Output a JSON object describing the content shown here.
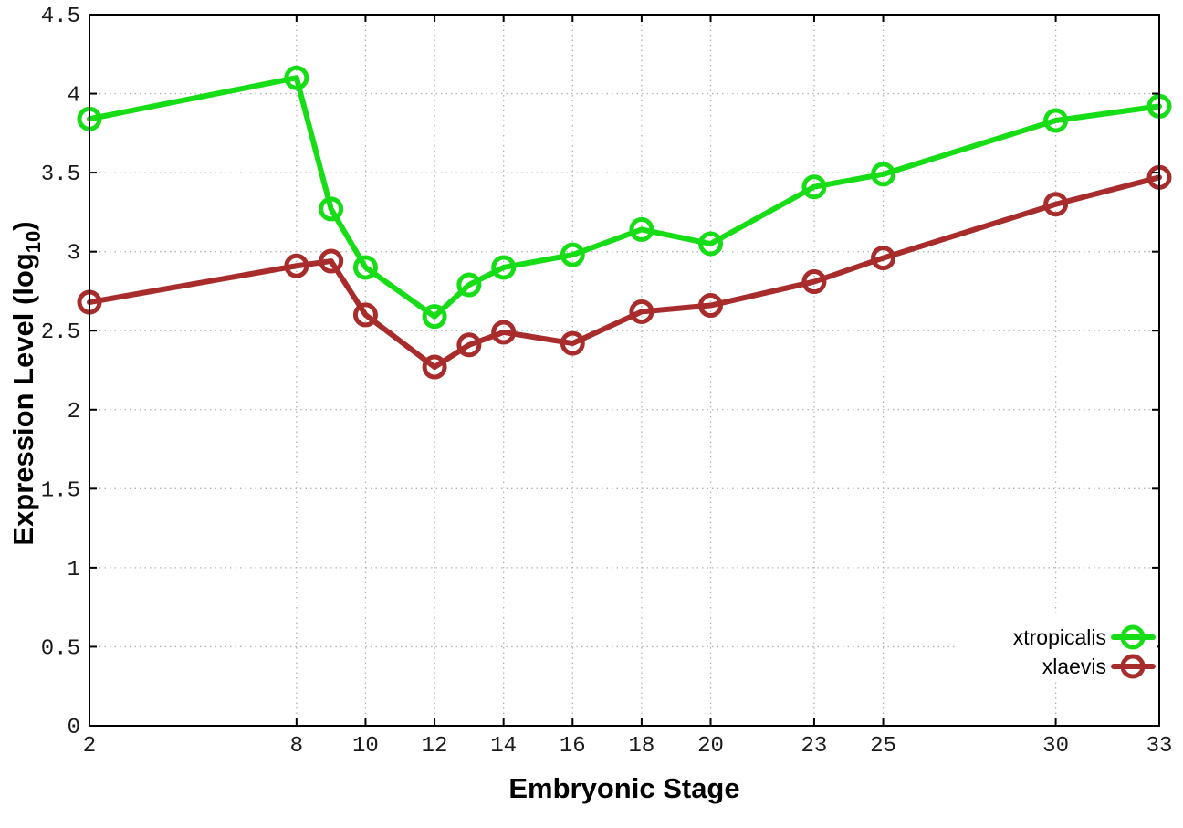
{
  "chart_data": {
    "type": "line",
    "title": "",
    "xlabel": "Embryonic Stage",
    "ylabel": "Expression Level (log10)",
    "ylabel_rich": {
      "main": "Expression Level (log",
      "sub": "10",
      "end": ")"
    },
    "xlim": [
      2,
      33
    ],
    "ylim": [
      0,
      4.5
    ],
    "x_ticks": [
      2,
      8,
      10,
      12,
      14,
      16,
      18,
      20,
      23,
      25,
      30,
      33
    ],
    "y_ticks": [
      0,
      0.5,
      1,
      1.5,
      2,
      2.5,
      3,
      3.5,
      4,
      4.5
    ],
    "grid": true,
    "legend_position": "bottom-right",
    "x": [
      2,
      8,
      9,
      10,
      12,
      13,
      14,
      16,
      18,
      20,
      23,
      25,
      30,
      33
    ],
    "series": [
      {
        "name": "xtropicalis",
        "color": "#17dd17",
        "marker": "open-circle",
        "values": [
          3.84,
          4.1,
          3.27,
          2.9,
          2.59,
          2.79,
          2.9,
          2.98,
          3.14,
          3.05,
          3.41,
          3.49,
          3.83,
          3.92
        ]
      },
      {
        "name": "xlaevis",
        "color": "#a82c2c",
        "marker": "open-circle",
        "values": [
          2.68,
          2.91,
          2.94,
          2.6,
          2.27,
          2.41,
          2.49,
          2.42,
          2.62,
          2.66,
          2.81,
          2.96,
          3.3,
          3.47
        ]
      }
    ],
    "colors": {
      "background": "#ffffff",
      "border": "#000000",
      "grid": "#b3b3b3",
      "tick_text": "#1a1a1a"
    }
  }
}
